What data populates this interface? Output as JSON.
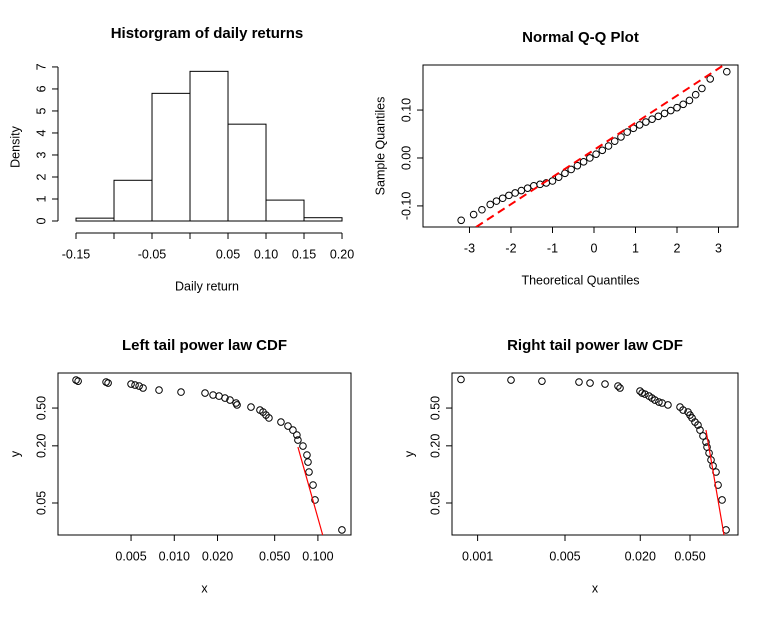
{
  "chart_data": [
    {
      "type": "histogram",
      "title": "Historgram of daily returns",
      "xlabel": "Daily return",
      "ylabel": "Density",
      "bins": [
        -0.15,
        -0.1,
        -0.05,
        0,
        0.05,
        0.1,
        0.15,
        0.2
      ],
      "values": [
        0.13,
        1.85,
        5.8,
        6.8,
        4.4,
        0.95,
        0.15
      ],
      "color": "#ffffff",
      "edgecolor": "#000000",
      "xlim": [
        -0.1737,
        0.2184
      ],
      "ylim": [
        -0.545,
        7.27
      ],
      "xticks": [
        -0.15,
        -0.05,
        0.05,
        {
          "value": 0.1,
          "label": "0.10"
        },
        0.15,
        {
          "value": 0.2,
          "label": "0.20"
        }
      ],
      "xminorticks": [
        -0.1,
        0
      ],
      "yticks": [
        0,
        1,
        2,
        3,
        4,
        5,
        6,
        7
      ]
    },
    {
      "type": "scatter",
      "title": "Normal Q-Q Plot",
      "xlabel": "Theoretical Quantiles",
      "ylabel": "Sample Quantiles",
      "x": [
        -3.2,
        -2.9,
        -2.7,
        -2.5,
        -2.35,
        -2.2,
        -2.05,
        -1.9,
        -1.75,
        -1.6,
        -1.45,
        -1.3,
        -1.15,
        -1.0,
        -0.85,
        -0.7,
        -0.55,
        -0.4,
        -0.25,
        -0.1,
        0.05,
        0.2,
        0.35,
        0.5,
        0.65,
        0.8,
        0.95,
        1.1,
        1.25,
        1.4,
        1.55,
        1.7,
        1.85,
        2.0,
        2.15,
        2.3,
        2.45,
        2.6,
        2.8,
        3.2
      ],
      "y": [
        -0.13,
        -0.118,
        -0.108,
        -0.097,
        -0.09,
        -0.084,
        -0.078,
        -0.073,
        -0.068,
        -0.063,
        -0.058,
        -0.055,
        -0.052,
        -0.048,
        -0.04,
        -0.032,
        -0.024,
        -0.016,
        -0.008,
        0.0,
        0.008,
        0.016,
        0.025,
        0.035,
        0.044,
        0.054,
        0.062,
        0.069,
        0.075,
        0.081,
        0.087,
        0.093,
        0.099,
        0.105,
        0.112,
        0.12,
        0.132,
        0.145,
        0.165,
        0.18
      ],
      "color": "#000000",
      "marker": "open-circle",
      "line": {
        "x": [
          -2.84,
          3.13
        ],
        "y": [
          -0.144,
          0.194
        ],
        "color": "#ff0000",
        "style": "dashed"
      },
      "xlim": [
        -4.12,
        3.47
      ],
      "ylim": [
        -0.144,
        0.194
      ],
      "xticks": [
        -3,
        -2,
        -1,
        0,
        1,
        2,
        3
      ],
      "yticks": [
        {
          "value": -0.1,
          "label": "-0.10"
        },
        {
          "value": 0,
          "label": "0.00"
        },
        {
          "value": 0.1,
          "label": "0.10"
        }
      ],
      "box": true
    },
    {
      "type": "scatter",
      "title": "Left tail power law CDF",
      "xlabel": "x",
      "ylabel": "y",
      "log": "xy",
      "x": [
        0.00207,
        0.00214,
        0.00335,
        0.00346,
        0.005,
        0.00533,
        0.00569,
        0.00606,
        0.00783,
        0.01114,
        0.01637,
        0.01862,
        0.02049,
        0.02254,
        0.02443,
        0.02692,
        0.02735,
        0.0342,
        0.0395,
        0.0415,
        0.0435,
        0.0456,
        0.0553,
        0.0619,
        0.067,
        0.0714,
        0.0726,
        0.0787,
        0.0839,
        0.0853,
        0.0867,
        0.0925,
        0.0955,
        0.147
      ],
      "y": [
        0.986,
        0.96,
        0.94,
        0.917,
        0.895,
        0.873,
        0.853,
        0.813,
        0.773,
        0.736,
        0.719,
        0.686,
        0.668,
        0.637,
        0.607,
        0.565,
        0.539,
        0.512,
        0.476,
        0.454,
        0.422,
        0.393,
        0.356,
        0.323,
        0.293,
        0.26,
        0.23,
        0.199,
        0.16,
        0.135,
        0.106,
        0.0773,
        0.0538,
        0.026
      ],
      "color": "#000000",
      "marker": "open-circle",
      "line": {
        "x": [
          0.0726,
          0.108
        ],
        "y": [
          0.194,
          0.023
        ],
        "color": "#ff0000",
        "style": "solid"
      },
      "xlim": [
        0.00155,
        0.17
      ],
      "ylim": [
        0.023,
        1.17
      ],
      "xticks": [
        0.005,
        {
          "value": 0.01,
          "label": "0.010"
        },
        {
          "value": 0.02,
          "label": "0.020"
        },
        {
          "value": 0.05,
          "label": "0.050"
        },
        {
          "value": 0.1,
          "label": "0.100"
        }
      ],
      "yticks": [
        {
          "value": 0.05,
          "label": "0.05"
        },
        {
          "value": 0.2,
          "label": "0.20"
        },
        {
          "value": 0.5,
          "label": "0.50"
        }
      ],
      "box": true
    },
    {
      "type": "scatter",
      "title": "Right tail power law CDF",
      "xlabel": "x",
      "ylabel": "y",
      "log": "xy",
      "x": [
        0.000736,
        0.00185,
        0.00327,
        0.00647,
        0.00793,
        0.01045,
        0.01327,
        0.01377,
        0.0199,
        0.0207,
        0.0218,
        0.0235,
        0.0248,
        0.0262,
        0.0282,
        0.0299,
        0.0333,
        0.0416,
        0.044,
        0.0482,
        0.05,
        0.0519,
        0.0548,
        0.0579,
        0.0601,
        0.0635,
        0.0671,
        0.0684,
        0.071,
        0.0736,
        0.0764,
        0.0807,
        0.0838,
        0.0902,
        0.0971
      ],
      "y": [
        1.0,
        0.986,
        0.96,
        0.94,
        0.917,
        0.895,
        0.853,
        0.813,
        0.755,
        0.719,
        0.701,
        0.668,
        0.637,
        0.607,
        0.578,
        0.565,
        0.539,
        0.512,
        0.476,
        0.454,
        0.422,
        0.393,
        0.356,
        0.331,
        0.293,
        0.254,
        0.219,
        0.194,
        0.168,
        0.142,
        0.123,
        0.106,
        0.0773,
        0.0538,
        0.026
      ],
      "color": "#000000",
      "marker": "open-circle",
      "line": {
        "x": [
          0.0671,
          0.0935
        ],
        "y": [
          0.293,
          0.023
        ],
        "color": "#ff0000",
        "style": "solid"
      },
      "xlim": [
        0.000624,
        0.121
      ],
      "ylim": [
        0.023,
        1.17
      ],
      "xticks": [
        0.001,
        0.005,
        {
          "value": 0.02,
          "label": "0.020"
        },
        {
          "value": 0.05,
          "label": "0.050"
        }
      ],
      "yticks": [
        {
          "value": 0.05,
          "label": "0.05"
        },
        {
          "value": 0.2,
          "label": "0.20"
        },
        {
          "value": 0.5,
          "label": "0.50"
        }
      ],
      "box": true
    }
  ]
}
